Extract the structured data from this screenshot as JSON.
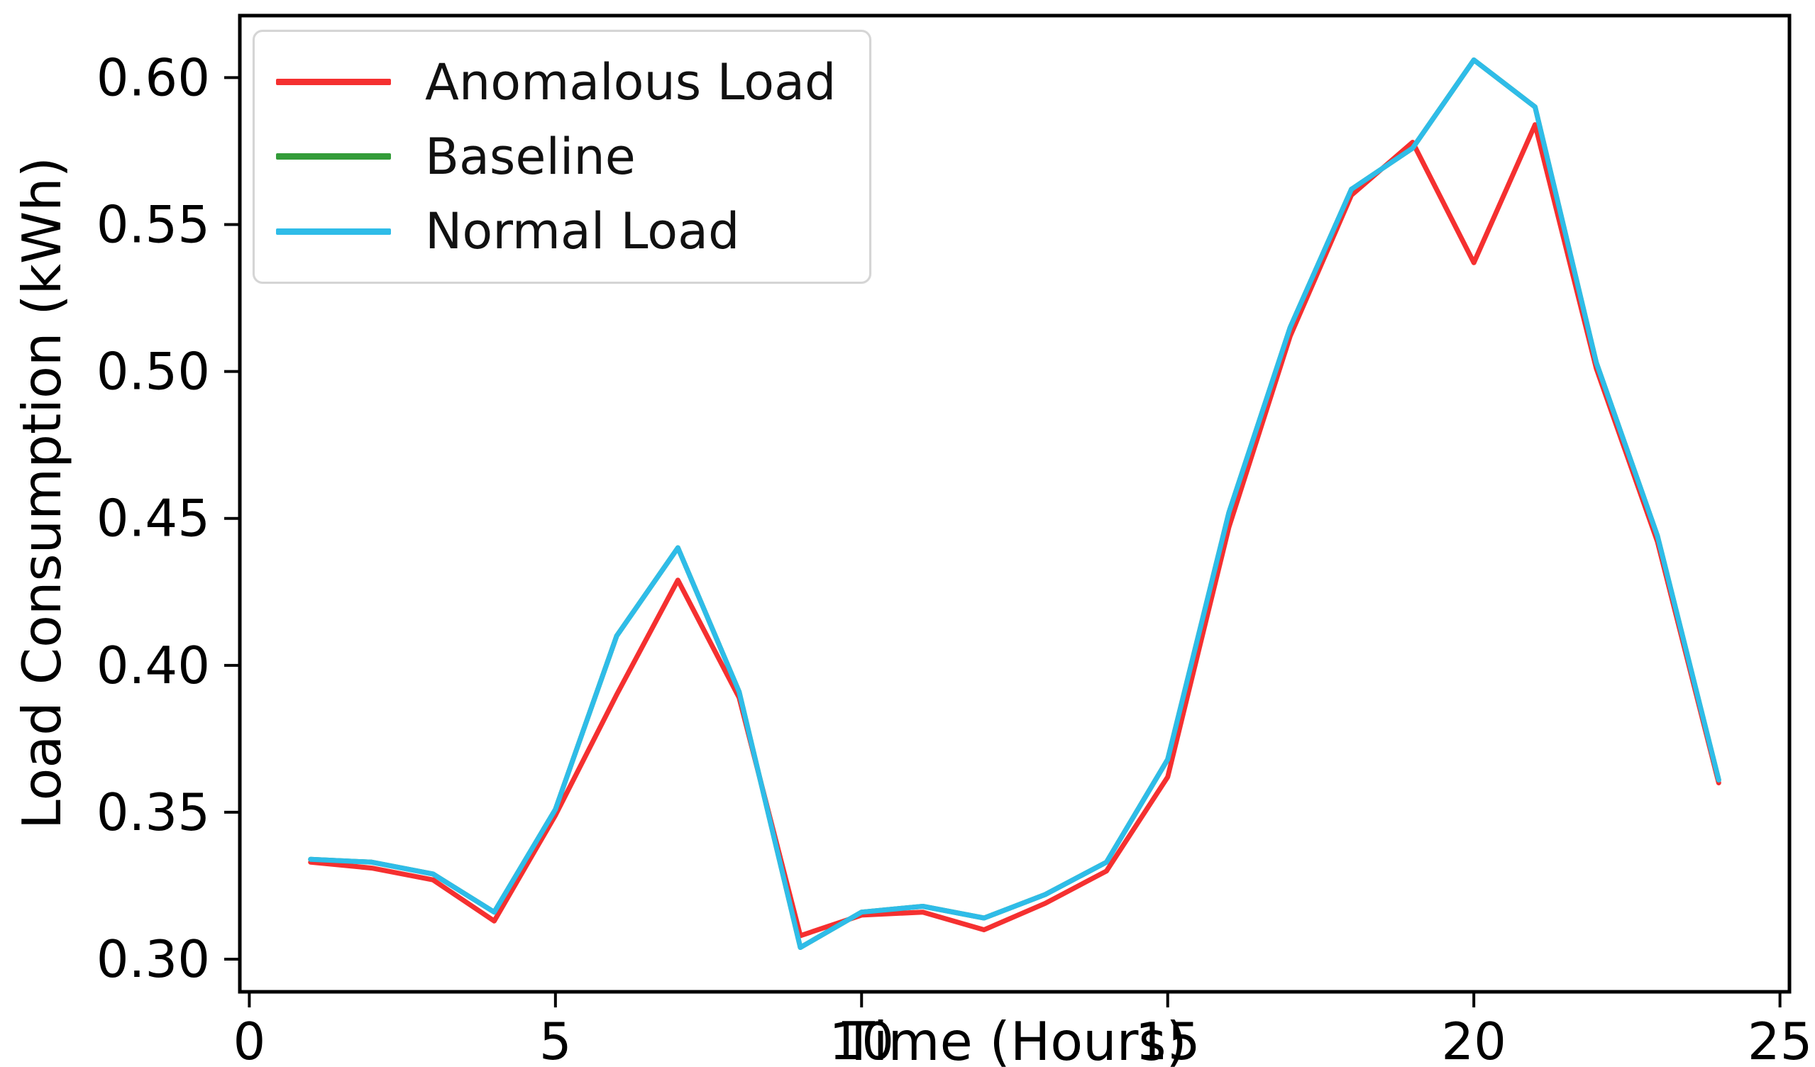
{
  "chart_data": {
    "type": "line",
    "title": "",
    "xlabel": "Time (Hours)",
    "ylabel": "Load Consumption (kWh)",
    "x": [
      1,
      2,
      3,
      4,
      5,
      6,
      7,
      8,
      9,
      10,
      11,
      12,
      13,
      14,
      15,
      16,
      17,
      18,
      19,
      20,
      21,
      22,
      23,
      24
    ],
    "series": [
      {
        "name": "Anomalous Load",
        "color": "#f53030",
        "values": [
          0.333,
          0.331,
          0.327,
          0.313,
          0.349,
          0.39,
          0.429,
          0.389,
          0.308,
          0.315,
          0.316,
          0.31,
          0.319,
          0.33,
          0.362,
          0.447,
          0.512,
          0.56,
          0.578,
          0.537,
          0.584,
          0.501,
          0.442,
          0.36
        ]
      },
      {
        "name": "Baseline",
        "color": "#339c39",
        "values": [
          0.334,
          0.333,
          0.329,
          0.316,
          0.351,
          0.41,
          0.44,
          0.391,
          0.304,
          0.316,
          0.318,
          0.314,
          0.322,
          0.333,
          0.368,
          0.452,
          0.515,
          0.562,
          0.576,
          0.606,
          0.59,
          0.503,
          0.444,
          0.361
        ]
      },
      {
        "name": "Normal Load",
        "color": "#2fbce8",
        "values": [
          0.334,
          0.333,
          0.329,
          0.316,
          0.351,
          0.41,
          0.44,
          0.391,
          0.304,
          0.316,
          0.318,
          0.314,
          0.322,
          0.333,
          0.368,
          0.452,
          0.515,
          0.562,
          0.576,
          0.606,
          0.59,
          0.503,
          0.444,
          0.361
        ]
      }
    ],
    "xlim": [
      -0.155,
      25.155
    ],
    "ylim": [
      0.2889,
      0.6211
    ],
    "xticks": [
      0,
      5,
      10,
      15,
      20,
      25
    ],
    "xtick_labels": [
      "0",
      "5",
      "10",
      "15",
      "20",
      "25"
    ],
    "yticks": [
      0.3,
      0.35,
      0.4,
      0.45,
      0.5,
      0.55,
      0.6
    ],
    "ytick_labels": [
      "0.30",
      "0.35",
      "0.40",
      "0.45",
      "0.50",
      "0.55",
      "0.60"
    ],
    "grid": false,
    "legend_position": "upper left",
    "axis_color": "#000000",
    "background_color": "#ffffff",
    "anomaly_note_hour": 20
  }
}
